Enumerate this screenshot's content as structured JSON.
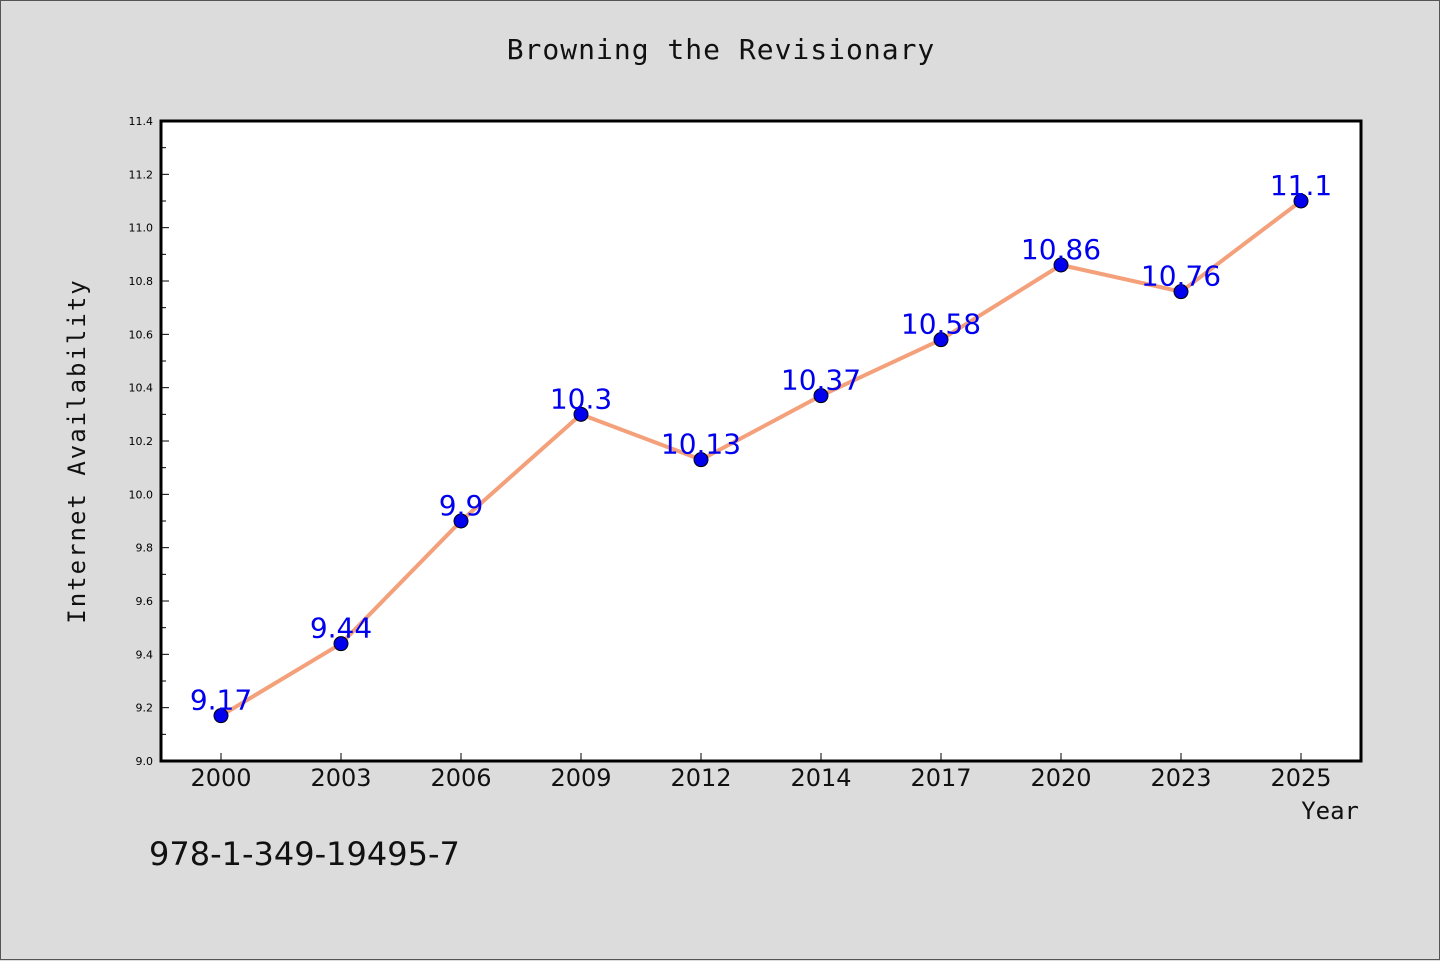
{
  "chart_data": {
    "type": "line",
    "title": "Browning the Revisionary",
    "xlabel": "Year",
    "ylabel": "Internet Availability",
    "categories": [
      "2000",
      "2003",
      "2006",
      "2009",
      "2012",
      "2014",
      "2017",
      "2020",
      "2023",
      "2025"
    ],
    "series": [
      {
        "values": [
          9.17,
          9.44,
          9.9,
          10.3,
          10.13,
          10.37,
          10.58,
          10.86,
          10.76,
          11.1
        ],
        "line_color": "#f4a07a",
        "marker_color": "#0000ee",
        "label_color": "#0000ee"
      }
    ],
    "ylim": [
      9.0,
      11.4
    ],
    "yticks": [
      "9.0",
      "9.2",
      "9.4",
      "9.6",
      "9.8",
      "10.0",
      "10.2",
      "10.4",
      "10.6",
      "10.8",
      "11.0",
      "11.2",
      "11.4"
    ],
    "grid": false,
    "legend": "none",
    "data_labels": true
  },
  "footer_text": "978-1-349-19495-7"
}
